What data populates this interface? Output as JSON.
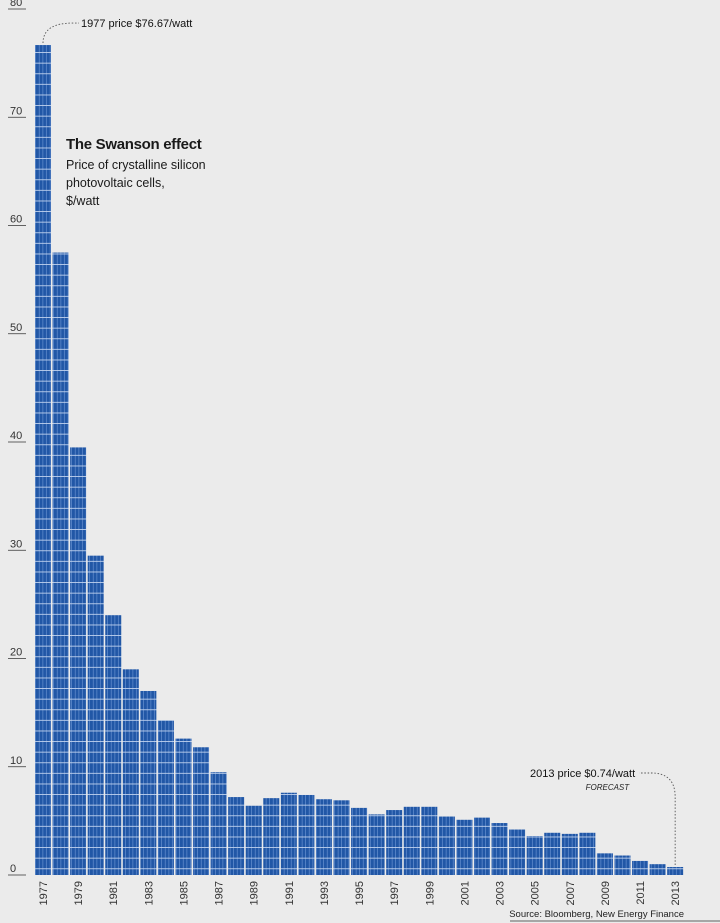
{
  "chart_data": {
    "type": "bar",
    "title": "The Swanson effect",
    "subtitle_lines": [
      "Price of crystalline silicon",
      "photovoltaic cells,",
      "$/watt"
    ],
    "categories": [
      "1977",
      "1978",
      "1979",
      "1980",
      "1981",
      "1982",
      "1983",
      "1984",
      "1985",
      "1986",
      "1987",
      "1988",
      "1989",
      "1990",
      "1991",
      "1992",
      "1993",
      "1994",
      "1995",
      "1996",
      "1997",
      "1998",
      "1999",
      "2000",
      "2001",
      "2002",
      "2003",
      "2004",
      "2005",
      "2006",
      "2007",
      "2008",
      "2009",
      "2010",
      "2011",
      "2012",
      "2013"
    ],
    "values": [
      76.67,
      57.5,
      39.5,
      29.5,
      24.0,
      19.0,
      17.0,
      14.3,
      12.6,
      11.8,
      9.5,
      7.2,
      6.4,
      7.1,
      7.6,
      7.4,
      7.0,
      6.9,
      6.2,
      5.6,
      6.0,
      6.3,
      6.3,
      5.4,
      5.1,
      5.3,
      4.8,
      4.2,
      3.6,
      3.9,
      3.8,
      3.9,
      2.0,
      1.8,
      1.3,
      1.0,
      0.74
    ],
    "x_tick_labels": [
      "1977",
      "1979",
      "1981",
      "1983",
      "1985",
      "1987",
      "1989",
      "1991",
      "1993",
      "1995",
      "1997",
      "1999",
      "2001",
      "2003",
      "2005",
      "2007",
      "2009",
      "2011",
      "2013"
    ],
    "y_tick_labels": [
      "0",
      "10",
      "20",
      "30",
      "40",
      "50",
      "60",
      "70",
      "80"
    ],
    "ylim": [
      0,
      80
    ],
    "grid": false,
    "bar_color": "#2157a6",
    "cell_line_color": "#6f98d6",
    "annotations": [
      {
        "text": "1977 price $76.67/watt",
        "category": "1977"
      },
      {
        "text": "2013 price $0.74/watt",
        "category": "2013",
        "note": "FORECAST"
      }
    ]
  },
  "source": "Source: Bloomberg, New Energy Finance"
}
